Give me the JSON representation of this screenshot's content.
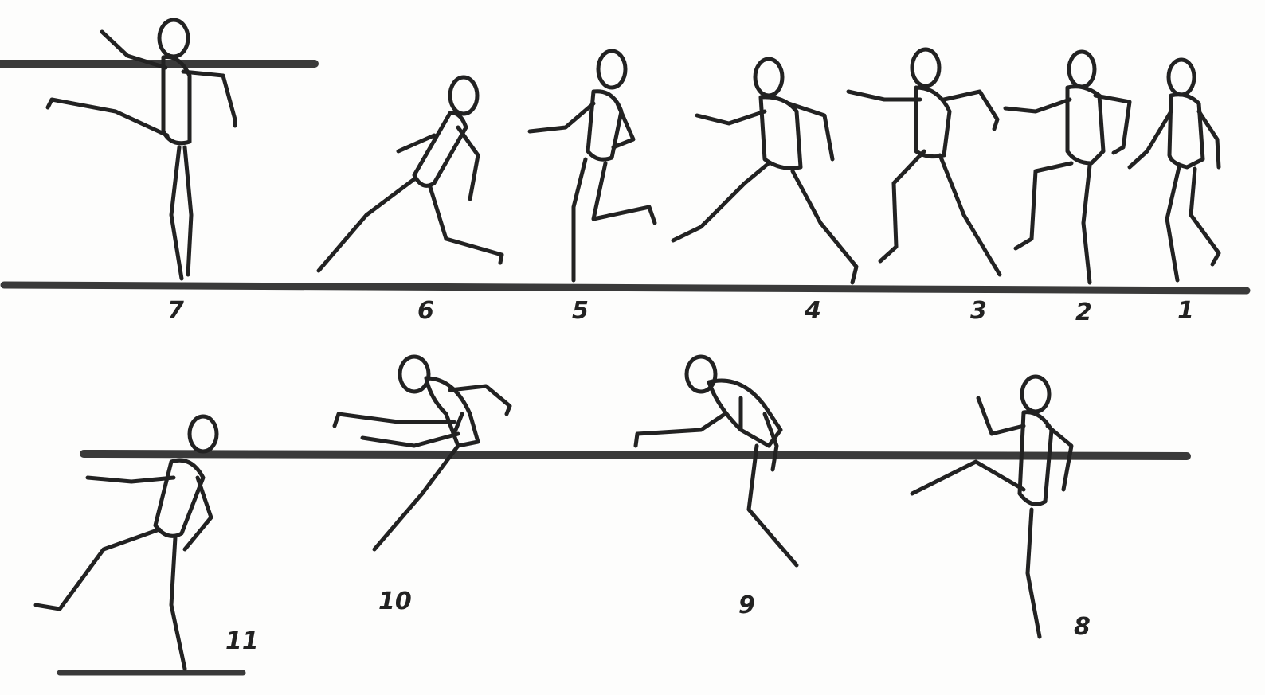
{
  "figure_labels": {
    "f1": "1",
    "f2": "2",
    "f3": "3",
    "f4": "4",
    "f5": "5",
    "f6": "6",
    "f7": "7",
    "f8": "8",
    "f9": "9",
    "f10": "10",
    "f11": "11"
  },
  "colors": {
    "ink": "#222222",
    "paper": "#fdfdfc"
  }
}
